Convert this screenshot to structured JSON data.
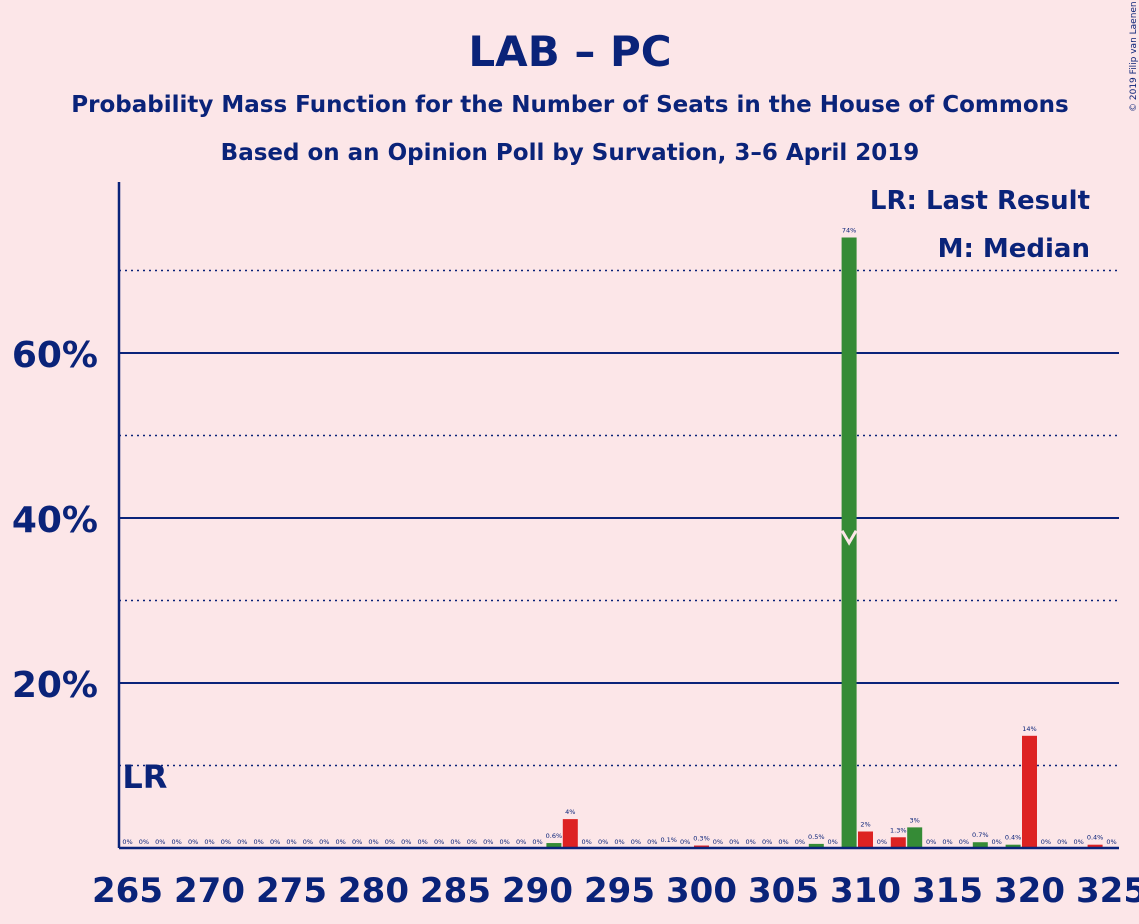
{
  "chart_data": {
    "type": "bar",
    "title": "LAB – PC",
    "subtitle": "Probability Mass Function for the Number of Seats in the House of Commons",
    "subtitle2": "Based on an Opinion Poll by Survation, 3–6 April 2019",
    "copyright": "© 2019 Filip van Laenen",
    "legend": [
      "LR: Last Result",
      "M: Median"
    ],
    "legend_position": "top-right",
    "lr_label": "LR",
    "last_result_seat": 266,
    "median_seat": 309,
    "xlim": [
      265,
      325
    ],
    "ylim": [
      0,
      80
    ],
    "x_ticks": [
      265,
      270,
      275,
      280,
      285,
      290,
      295,
      300,
      305,
      310,
      315,
      320,
      325
    ],
    "y_ticks_solid": [
      20,
      40,
      60
    ],
    "y_tick_labels": [
      "20%",
      "40%",
      "60%"
    ],
    "y_gridlines_dotted": [
      10,
      30,
      50,
      70
    ],
    "colors": {
      "green": "#358b36",
      "red": "#dd2222",
      "axis": "#0a2379",
      "background": "#fce6e8"
    },
    "bars": [
      {
        "x": 265,
        "value": 0,
        "label": "0%",
        "color": "red"
      },
      {
        "x": 266,
        "value": 0,
        "label": "0%",
        "color": "green"
      },
      {
        "x": 267,
        "value": 0,
        "label": "0%",
        "color": "red"
      },
      {
        "x": 268,
        "value": 0,
        "label": "0%",
        "color": "green"
      },
      {
        "x": 269,
        "value": 0,
        "label": "0%",
        "color": "red"
      },
      {
        "x": 270,
        "value": 0,
        "label": "0%",
        "color": "green"
      },
      {
        "x": 271,
        "value": 0,
        "label": "0%",
        "color": "red"
      },
      {
        "x": 272,
        "value": 0,
        "label": "0%",
        "color": "green"
      },
      {
        "x": 273,
        "value": 0,
        "label": "0%",
        "color": "red"
      },
      {
        "x": 274,
        "value": 0,
        "label": "0%",
        "color": "green"
      },
      {
        "x": 275,
        "value": 0,
        "label": "0%",
        "color": "red"
      },
      {
        "x": 276,
        "value": 0,
        "label": "0%",
        "color": "green"
      },
      {
        "x": 277,
        "value": 0,
        "label": "0%",
        "color": "red"
      },
      {
        "x": 278,
        "value": 0,
        "label": "0%",
        "color": "green"
      },
      {
        "x": 279,
        "value": 0,
        "label": "0%",
        "color": "red"
      },
      {
        "x": 280,
        "value": 0,
        "label": "0%",
        "color": "green"
      },
      {
        "x": 281,
        "value": 0,
        "label": "0%",
        "color": "red"
      },
      {
        "x": 282,
        "value": 0,
        "label": "0%",
        "color": "green"
      },
      {
        "x": 283,
        "value": 0,
        "label": "0%",
        "color": "red"
      },
      {
        "x": 284,
        "value": 0,
        "label": "0%",
        "color": "green"
      },
      {
        "x": 285,
        "value": 0,
        "label": "0%",
        "color": "red"
      },
      {
        "x": 286,
        "value": 0,
        "label": "0%",
        "color": "green"
      },
      {
        "x": 287,
        "value": 0,
        "label": "0%",
        "color": "red"
      },
      {
        "x": 288,
        "value": 0,
        "label": "0%",
        "color": "green"
      },
      {
        "x": 289,
        "value": 0,
        "label": "0%",
        "color": "red"
      },
      {
        "x": 290,
        "value": 0,
        "label": "0%",
        "color": "green"
      },
      {
        "x": 291,
        "value": 0.6,
        "label": "0.6%",
        "color": "green"
      },
      {
        "x": 292,
        "value": 3.5,
        "label": "4%",
        "color": "red"
      },
      {
        "x": 293,
        "value": 0,
        "label": "0%",
        "color": "green"
      },
      {
        "x": 294,
        "value": 0,
        "label": "0%",
        "color": "red"
      },
      {
        "x": 295,
        "value": 0,
        "label": "0%",
        "color": "green"
      },
      {
        "x": 296,
        "value": 0,
        "label": "0%",
        "color": "red"
      },
      {
        "x": 297,
        "value": 0,
        "label": "0%",
        "color": "green"
      },
      {
        "x": 298,
        "value": 0.1,
        "label": "0.1%",
        "color": "red"
      },
      {
        "x": 299,
        "value": 0,
        "label": "0%",
        "color": "green"
      },
      {
        "x": 300,
        "value": 0.3,
        "label": "0.3%",
        "color": "red"
      },
      {
        "x": 301,
        "value": 0,
        "label": "0%",
        "color": "green"
      },
      {
        "x": 302,
        "value": 0,
        "label": "0%",
        "color": "red"
      },
      {
        "x": 303,
        "value": 0,
        "label": "0%",
        "color": "green"
      },
      {
        "x": 304,
        "value": 0,
        "label": "0%",
        "color": "red"
      },
      {
        "x": 305,
        "value": 0,
        "label": "0%",
        "color": "green"
      },
      {
        "x": 306,
        "value": 0,
        "label": "0%",
        "color": "red"
      },
      {
        "x": 307,
        "value": 0.5,
        "label": "0.5%",
        "color": "green"
      },
      {
        "x": 308,
        "value": 0,
        "label": "0%",
        "color": "red"
      },
      {
        "x": 309,
        "value": 74,
        "label": "74%",
        "color": "green"
      },
      {
        "x": 310,
        "value": 2,
        "label": "2%",
        "color": "red"
      },
      {
        "x": 311,
        "value": 0,
        "label": "0%",
        "color": "green"
      },
      {
        "x": 312,
        "value": 1.3,
        "label": "1.3%",
        "color": "red"
      },
      {
        "x": 313,
        "value": 2.5,
        "label": "3%",
        "color": "green"
      },
      {
        "x": 314,
        "value": 0,
        "label": "0%",
        "color": "red"
      },
      {
        "x": 315,
        "value": 0,
        "label": "0%",
        "color": "green"
      },
      {
        "x": 316,
        "value": 0,
        "label": "0%",
        "color": "red"
      },
      {
        "x": 317,
        "value": 0.7,
        "label": "0.7%",
        "color": "green"
      },
      {
        "x": 318,
        "value": 0,
        "label": "0%",
        "color": "red"
      },
      {
        "x": 319,
        "value": 0.4,
        "label": "0.4%",
        "color": "green"
      },
      {
        "x": 320,
        "value": 13.6,
        "label": "14%",
        "color": "red"
      },
      {
        "x": 321,
        "value": 0,
        "label": "0%",
        "color": "green"
      },
      {
        "x": 322,
        "value": 0,
        "label": "0%",
        "color": "red"
      },
      {
        "x": 323,
        "value": 0,
        "label": "0%",
        "color": "green"
      },
      {
        "x": 324,
        "value": 0.4,
        "label": "0.4%",
        "color": "red"
      },
      {
        "x": 325,
        "value": 0,
        "label": "0%",
        "color": "green"
      }
    ]
  }
}
